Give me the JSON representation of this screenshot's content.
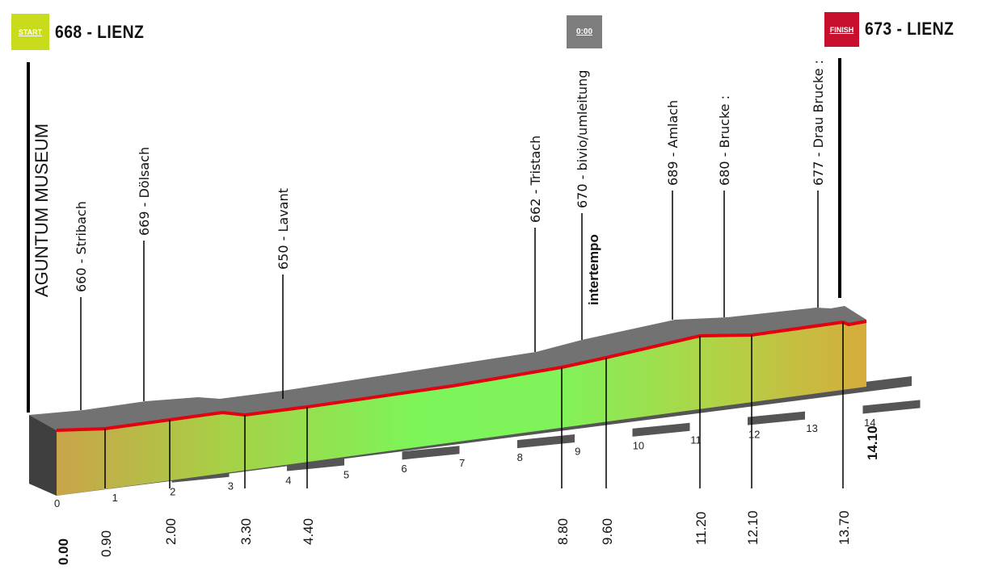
{
  "header": {
    "start_badge": "START",
    "start_text": "668 - LIENZ",
    "timer_badge": "0:00",
    "finish_badge": "FINISH",
    "finish_text": "673 - LIENZ"
  },
  "start_location": "AGUNTUM MUSEUM",
  "intertempo_label": "intertempo",
  "colors": {
    "start_badge": "#c9dc1b",
    "finish_badge": "#c8102e",
    "timer_badge": "#7d7d7d",
    "road_line": "#e3000f",
    "top_surface": "#6f6f6f",
    "base_dark": "#555555"
  },
  "chart_data": {
    "type": "area",
    "title": "",
    "xlabel": "",
    "ylabel": "",
    "xlim": [
      0,
      14.1
    ],
    "distance_ticks": [
      "0",
      "1",
      "2",
      "3",
      "4",
      "5",
      "6",
      "7",
      "8",
      "9",
      "10",
      "11",
      "12",
      "13",
      "14"
    ],
    "waypoints": [
      {
        "km": 0.9,
        "km_label": "0.90",
        "label": "660 - Stribach"
      },
      {
        "km": 2.0,
        "km_label": "2.00",
        "label": "669 - Dölsach"
      },
      {
        "km": 3.3,
        "km_label": "3.30",
        "label": ""
      },
      {
        "km": 4.4,
        "km_label": "4.40",
        "label": "650 - Lavant"
      },
      {
        "km": 8.8,
        "km_label": "8.80",
        "label": "662 - Tristach"
      },
      {
        "km": 9.6,
        "km_label": "9.60",
        "label": "670 - bivio/umleitung"
      },
      {
        "km": 11.2,
        "km_label": "11.20",
        "label": "689 - Amlach"
      },
      {
        "km": 12.1,
        "km_label": "12.10",
        "label": "680 - Brucke :"
      },
      {
        "km": 13.7,
        "km_label": "13.70",
        "label": "677 - Drau Brucke :"
      }
    ],
    "start_km_label": "0.00",
    "finish_km_label": "14.10"
  }
}
